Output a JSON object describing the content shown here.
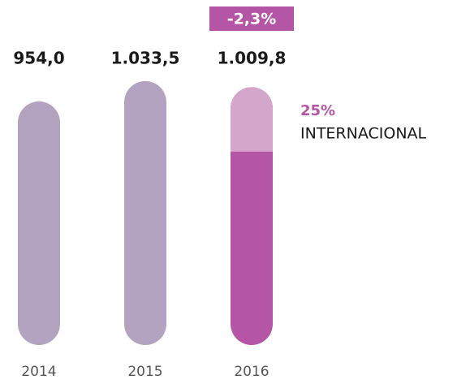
{
  "chart_data": {
    "type": "bar",
    "categories": [
      "2014",
      "2015",
      "2016"
    ],
    "values": [
      954.0,
      1033.5,
      1009.8
    ],
    "value_labels": [
      "954,0",
      "1.033,5",
      "1.009,8"
    ],
    "colors": [
      "#b3a3c0",
      "#b3a3c0",
      "#b455a5"
    ],
    "ylim": [
      0,
      1100
    ],
    "badge": "-2,3%",
    "badge_color": "#b455a5",
    "highlight": {
      "category": "2016",
      "share": 25,
      "share_label": "25%",
      "label": "INTERNACIONAL",
      "color": "#d4a6cc"
    }
  }
}
